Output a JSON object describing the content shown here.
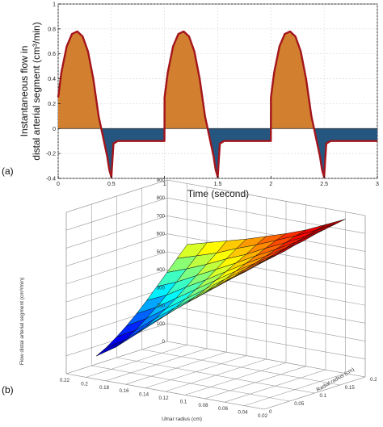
{
  "chart_data": [
    {
      "panel_label": "(a)",
      "type": "area",
      "xlabel": "Time (second)",
      "ylabel_line1": "Instantaneous flow in",
      "ylabel_line2": "distal arterial segment (cm³/min)",
      "xlim": [
        0,
        3
      ],
      "ylim": [
        -0.4,
        1
      ],
      "xticks": [
        "0",
        "0.5",
        "1",
        "1.5",
        "2",
        "2.5",
        "3"
      ],
      "yticks": [
        "1",
        "0.8",
        "0.6",
        "0.4",
        "0.2",
        "0",
        "-0.2",
        "-0.4"
      ],
      "positive_fill": "#d2802f",
      "negative_fill": "#245680",
      "line_color": "#a3151c",
      "x": [
        0.0,
        0.03,
        0.08,
        0.13,
        0.18,
        0.23,
        0.28,
        0.33,
        0.38,
        0.43,
        0.46,
        0.48,
        0.5,
        0.51,
        0.52,
        0.56,
        0.63,
        0.7,
        0.8,
        0.9,
        0.95,
        0.999,
        1.0,
        1.03,
        1.08,
        1.13,
        1.18,
        1.23,
        1.28,
        1.33,
        1.38,
        1.43,
        1.46,
        1.48,
        1.5,
        1.51,
        1.52,
        1.56,
        1.63,
        1.7,
        1.8,
        1.9,
        1.95,
        1.999,
        2.0,
        2.03,
        2.08,
        2.13,
        2.18,
        2.23,
        2.28,
        2.33,
        2.38,
        2.43,
        2.46,
        2.48,
        2.5,
        2.51,
        2.52,
        2.56,
        2.63,
        2.7,
        2.8,
        2.9,
        2.95,
        3.0
      ],
      "y": [
        0.25,
        0.45,
        0.66,
        0.76,
        0.78,
        0.74,
        0.62,
        0.4,
        0.1,
        -0.1,
        -0.22,
        -0.33,
        -0.39,
        -0.25,
        -0.12,
        -0.1,
        -0.1,
        -0.1,
        -0.1,
        -0.1,
        -0.1,
        -0.1,
        0.25,
        0.45,
        0.66,
        0.76,
        0.78,
        0.74,
        0.62,
        0.4,
        0.1,
        -0.1,
        -0.22,
        -0.33,
        -0.39,
        -0.25,
        -0.12,
        -0.1,
        -0.1,
        -0.1,
        -0.1,
        -0.1,
        -0.1,
        -0.1,
        0.25,
        0.45,
        0.66,
        0.76,
        0.78,
        0.74,
        0.62,
        0.4,
        0.1,
        -0.1,
        -0.22,
        -0.33,
        -0.39,
        -0.25,
        -0.12,
        -0.1,
        -0.1,
        -0.1,
        -0.1,
        -0.1,
        -0.1,
        -0.1
      ]
    },
    {
      "panel_label": "(b)",
      "type": "heatmap",
      "surface": "3d",
      "xlabel": "Ulnar radius (cm)",
      "ylabel": "Radial radius (cm)",
      "zlabel": "Flow distal arterial segment (cm³/min)",
      "ulnar_ticks": [
        "0.22",
        "0.2",
        "0.18",
        "0.16",
        "0.14",
        "0.12",
        "0.1",
        "0.08",
        "0.06",
        "0.04",
        "0.02"
      ],
      "radial_ticks": [
        "0.2",
        "0.15",
        "0.1",
        "0.05",
        "0"
      ],
      "zticks": [
        "900",
        "800",
        "700",
        "600",
        "500",
        "400",
        "300",
        "200",
        "100",
        "0"
      ],
      "zlim": [
        0,
        900
      ],
      "colormap": "jet",
      "ulnar": [
        0.2,
        0.18,
        0.16,
        0.14,
        0.12,
        0.1,
        0.08,
        0.06,
        0.04
      ],
      "radial": [
        0.02,
        0.04,
        0.06,
        0.08,
        0.1,
        0.12,
        0.14,
        0.16,
        0.18,
        0.2
      ],
      "z": [
        [
          100,
          130,
          170,
          215,
          265,
          320,
          380,
          440,
          500,
          560
        ],
        [
          170,
          195,
          230,
          275,
          320,
          370,
          425,
          480,
          535,
          590
        ],
        [
          260,
          285,
          315,
          350,
          390,
          435,
          480,
          525,
          570,
          620
        ],
        [
          350,
          370,
          395,
          425,
          460,
          495,
          535,
          575,
          615,
          650
        ],
        [
          440,
          455,
          475,
          500,
          530,
          560,
          590,
          620,
          655,
          685
        ],
        [
          520,
          535,
          555,
          575,
          600,
          625,
          650,
          675,
          700,
          720
        ],
        [
          600,
          615,
          630,
          650,
          665,
          685,
          705,
          725,
          745,
          760
        ],
        [
          680,
          690,
          705,
          720,
          735,
          750,
          765,
          780,
          795,
          810
        ],
        [
          760,
          770,
          780,
          790,
          805,
          815,
          830,
          840,
          850,
          860
        ]
      ]
    }
  ]
}
